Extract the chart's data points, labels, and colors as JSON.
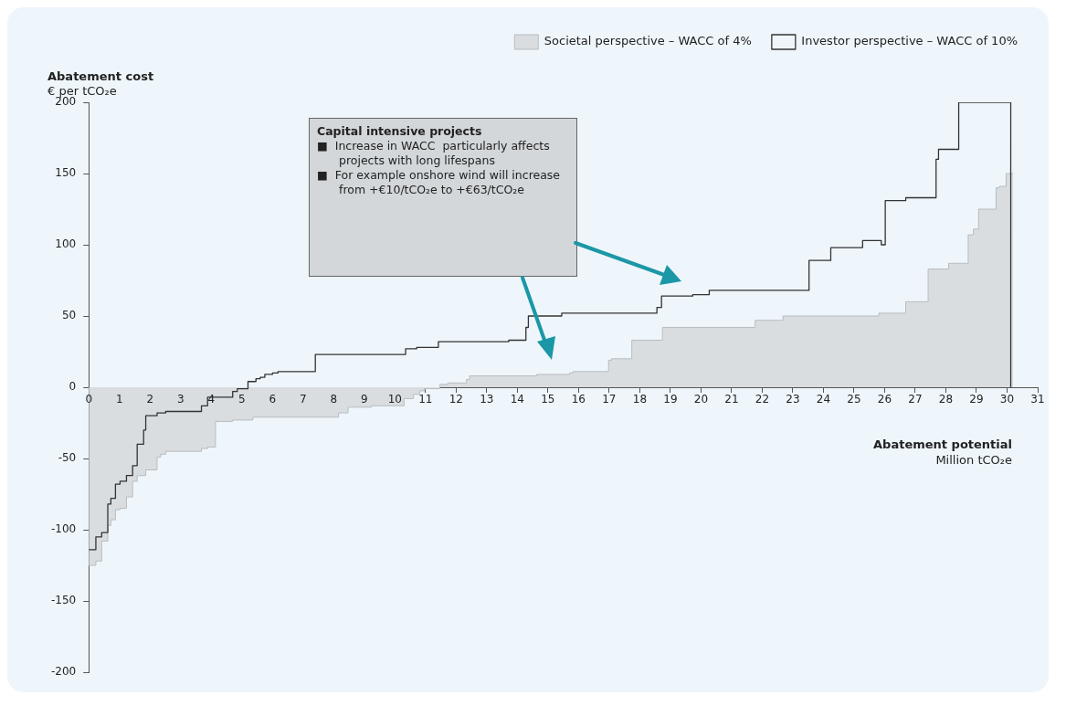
{
  "chart_data": {
    "type": "step",
    "ylabel": "Abatement cost\n€ per tCO₂e",
    "xlabel": "Abatement potential\nMillion tCO₂e",
    "annotations": [
      "Capital intensive projects",
      "■  Increase in WACC  particularly affects projects with long lifespans",
      "■  For example onshore wind will increase from +€10/tCO₂e to +€63/tCO₂e"
    ],
    "xlim": [
      0,
      31
    ],
    "xticks": [
      0,
      1,
      2,
      3,
      4,
      5,
      6,
      7,
      8,
      9,
      10,
      11,
      12,
      13,
      14,
      15,
      16,
      17,
      18,
      19,
      20,
      21,
      22,
      23,
      24,
      25,
      26,
      27,
      28,
      29,
      30,
      31
    ],
    "ylim": [
      -200,
      200
    ],
    "yticks": [
      -200,
      -150,
      -100,
      -50,
      0,
      50,
      100,
      150,
      200
    ],
    "legend": "top right",
    "series": [
      {
        "name": "Societal perspective – WACC of 4%",
        "type": "area",
        "color": "#d9dde0",
        "x": [
          0,
          0.23,
          0.23,
          0.42,
          0.42,
          0.62,
          0.62,
          0.72,
          0.72,
          0.87,
          0.87,
          1.02,
          1.02,
          1.23,
          1.23,
          1.43,
          1.43,
          1.58,
          1.58,
          1.86,
          1.86,
          2.23,
          2.23,
          2.35,
          2.35,
          2.51,
          2.51,
          3.68,
          3.68,
          3.88,
          3.88,
          4.14,
          4.14,
          4.7,
          4.7,
          5.36,
          5.36,
          8.16,
          8.16,
          8.47,
          8.47,
          9.23,
          9.23,
          10.3,
          10.3,
          10.61,
          10.61,
          10.81,
          10.81,
          10.97,
          10.97,
          11.47,
          11.47,
          11.73,
          11.73,
          12.34,
          12.34,
          12.44,
          12.44,
          14.63,
          14.63,
          15.7,
          15.7,
          15.81,
          15.81,
          16.98,
          16.98,
          17.08,
          17.08,
          17.74,
          17.74,
          18.74,
          18.74,
          21.77,
          21.77,
          22.68,
          22.68,
          25.81,
          25.81,
          26.69,
          26.69,
          27.42,
          27.42,
          28.09,
          28.09,
          28.73,
          28.73,
          28.9,
          28.9,
          29.07,
          29.07,
          29.64,
          29.64,
          29.75,
          29.75,
          29.97,
          29.97,
          30.2
        ],
        "values": [
          -125,
          -125,
          -122,
          -122,
          -108,
          -108,
          -97,
          -97,
          -93,
          -93,
          -86,
          -86,
          -85,
          -85,
          -77,
          -77,
          -66,
          -66,
          -62,
          -62,
          -58,
          -58,
          -49,
          -49,
          -47,
          -47,
          -45,
          -45,
          -43,
          -43,
          -42,
          -42,
          -24,
          -24,
          -23,
          -23,
          -21,
          -21,
          -18,
          -18,
          -14,
          -14,
          -13,
          -13,
          -8,
          -8,
          -5,
          -5,
          -2.5,
          -2.5,
          -1,
          -1,
          2,
          2,
          3,
          3,
          5.5,
          5.5,
          8,
          8,
          9,
          9,
          10,
          10,
          11,
          11,
          19,
          19,
          20,
          20,
          33,
          33,
          42,
          42,
          47,
          47,
          50,
          50,
          52,
          52,
          60,
          60,
          83,
          83,
          87,
          87,
          107,
          107,
          111,
          111,
          125,
          125,
          140,
          140,
          141,
          141,
          150,
          150
        ]
      },
      {
        "name": "Investor perspective – WACC of 10%",
        "type": "step",
        "color": "#333333",
        "x": [
          0,
          0.23,
          0.42,
          0.62,
          0.72,
          0.87,
          1.02,
          1.23,
          1.43,
          1.58,
          1.79,
          1.86,
          2.23,
          2.51,
          3.68,
          3.88,
          4.7,
          4.85,
          5.2,
          5.46,
          5.6,
          5.75,
          6.0,
          6.18,
          7.4,
          10.35,
          10.71,
          11.42,
          13.72,
          14.28,
          14.36,
          15.45,
          18.56,
          18.71,
          19.73,
          20.27,
          23.53,
          24.24,
          25.28,
          25.89,
          26.02,
          26.69,
          27.68,
          27.76,
          28.42,
          30.12
        ],
        "values": [
          -114,
          -105,
          -102,
          -82,
          -78,
          -68,
          -66,
          -62,
          -55,
          -40,
          -30,
          -20,
          -18,
          -17,
          -13,
          -7,
          -3,
          -1,
          4,
          6,
          7,
          9,
          10,
          11,
          23,
          27,
          28,
          32,
          33,
          42,
          50,
          52,
          56,
          64,
          65,
          68,
          89,
          98,
          103,
          100,
          131,
          133,
          160,
          167,
          200,
          0
        ]
      }
    ]
  }
}
